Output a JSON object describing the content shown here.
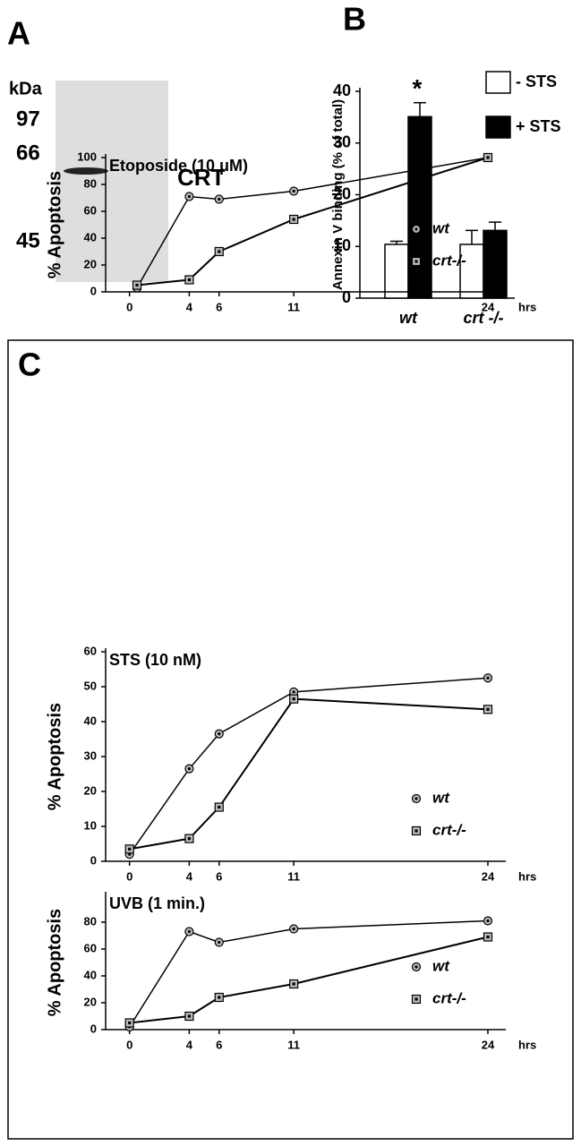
{
  "panel_labels": [
    "A",
    "B",
    "C"
  ],
  "blot": {
    "unit": "kDa",
    "markers": [
      97,
      66,
      45
    ],
    "band_label": "CRT"
  },
  "chart_data": [
    {
      "type": "bar",
      "ylabel": "Annexin V binding (% of total)",
      "categories": [
        "wt",
        "crt -/-"
      ],
      "series": [
        {
          "name": "- STS",
          "color": "#ffffff",
          "values": [
            10.4,
            10.4
          ],
          "errors": [
            0.6,
            2.7
          ]
        },
        {
          "name": "+ STS",
          "color": "#000000",
          "values": [
            35.1,
            13.1
          ],
          "errors": [
            2.7,
            1.6
          ]
        }
      ],
      "ylim": [
        0,
        40
      ],
      "yticks": [
        0,
        10,
        20,
        30,
        40
      ],
      "annotation": "*",
      "legend": "upper right"
    },
    {
      "type": "line",
      "title": "Etoposide (10 μM)",
      "ylabel": "% Apoptosis",
      "xlabel": "hrs",
      "x": [
        0.5,
        4,
        6,
        11,
        24
      ],
      "xlim": [
        -1.6,
        25.2
      ],
      "xticks": [
        0,
        4,
        6,
        11,
        24
      ],
      "ylim": [
        0,
        100
      ],
      "yticks": [
        0,
        20,
        40,
        60,
        80,
        100
      ],
      "legend": "lower right",
      "series": [
        {
          "name": "wt",
          "color": "#000000",
          "values": [
            3,
            71,
            69,
            75,
            100
          ]
        },
        {
          "name": "crt-/-",
          "color": "#000000",
          "values": [
            5,
            9,
            30,
            54,
            100
          ]
        }
      ]
    },
    {
      "type": "line",
      "title": "STS (10 nM)",
      "ylabel": "% Apoptosis",
      "xlabel": "hrs",
      "x": [
        0,
        4,
        6,
        11,
        24
      ],
      "xlim": [
        -1.6,
        25.2
      ],
      "xticks": [
        0,
        4,
        6,
        11,
        24
      ],
      "ylim": [
        0,
        60
      ],
      "yticks": [
        0,
        10,
        20,
        30,
        40,
        50,
        60
      ],
      "legend": "lower right",
      "series": [
        {
          "name": "wt",
          "color": "#000000",
          "values": [
            2,
            26.5,
            36.5,
            48.5,
            52.5
          ]
        },
        {
          "name": "crt-/-",
          "color": "#000000",
          "values": [
            3.5,
            6.5,
            15.5,
            46.5,
            43.5
          ]
        }
      ]
    },
    {
      "type": "line",
      "title": "UVB (1 min.)",
      "ylabel": "% Apoptosis",
      "xlabel": "hrs",
      "x": [
        0,
        4,
        6,
        11,
        24
      ],
      "xlim": [
        -1.6,
        25.2
      ],
      "xticks": [
        0,
        4,
        6,
        11,
        24
      ],
      "ylim": [
        0,
        100
      ],
      "yticks": [
        0,
        20,
        40,
        60,
        80
      ],
      "legend": "lower right",
      "series": [
        {
          "name": "wt",
          "color": "#000000",
          "values": [
            2,
            73,
            65,
            75,
            81
          ]
        },
        {
          "name": "crt-/-",
          "color": "#000000",
          "values": [
            5,
            10,
            24,
            34,
            69
          ]
        }
      ]
    }
  ]
}
